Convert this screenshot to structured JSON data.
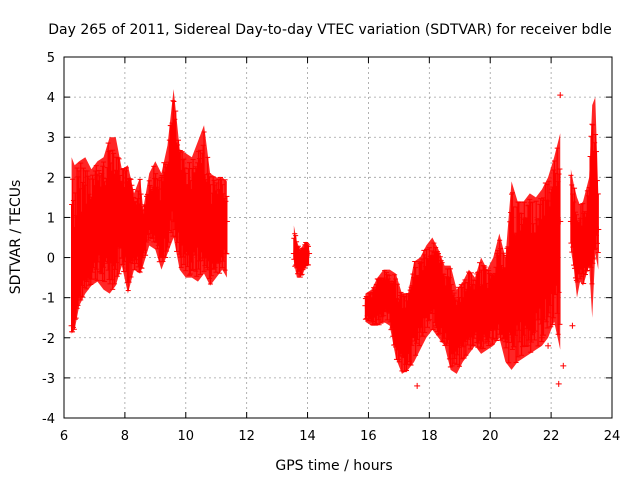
{
  "chart_data": {
    "type": "scatter",
    "title": "Day 265 of 2011, Sidereal Day-to-day VTEC variation (SDTVAR) for receiver bdle",
    "xlabel": "GPS time / hours",
    "ylabel": "SDTVAR / TECUs",
    "xlim": [
      6,
      24
    ],
    "ylim": [
      -4,
      5
    ],
    "xticks": [
      6,
      8,
      10,
      12,
      14,
      16,
      18,
      20,
      22,
      24
    ],
    "yticks": [
      -4,
      -3,
      -2,
      -1,
      0,
      1,
      2,
      3,
      4,
      5
    ],
    "grid": true,
    "series_color": "#ff0000",
    "series": [
      {
        "name": "SDTVAR",
        "marker": "plus",
        "segments": [
          {
            "x": [
              6.25,
              6.35,
              6.5,
              6.7,
              6.9,
              7.1,
              7.3,
              7.5,
              7.7,
              7.9,
              8.1,
              8.3,
              8.5,
              8.6,
              8.8,
              9.0,
              9.2,
              9.4,
              9.6,
              9.8,
              10.0,
              10.2,
              10.4,
              10.6,
              10.8,
              11.0,
              11.2,
              11.35
            ],
            "y": [
              -1.7,
              -1.2,
              -0.5,
              0.1,
              0.6,
              0.9,
              0.7,
              1.3,
              1.1,
              1.4,
              0.6,
              1.0,
              0.5,
              0.8,
              1.2,
              0.9,
              0.6,
              1.5,
              2.3,
              1.4,
              1.0,
              0.8,
              1.2,
              0.9,
              0.5,
              0.7,
              0.8,
              0.9
            ],
            "lo": [
              -1.9,
              -1.8,
              -1.2,
              -0.9,
              -0.7,
              -0.6,
              -0.8,
              -0.9,
              -0.7,
              -0.2,
              -0.9,
              -0.3,
              -0.4,
              -0.2,
              0.3,
              0.2,
              -0.3,
              0.1,
              0.5,
              -0.3,
              -0.5,
              -0.5,
              -0.6,
              -0.4,
              -0.7,
              -0.5,
              -0.3,
              -0.5
            ],
            "hi": [
              2.5,
              2.3,
              2.4,
              2.5,
              2.2,
              2.4,
              2.5,
              3.0,
              3.0,
              2.2,
              2.3,
              1.6,
              2.0,
              1.2,
              2.1,
              2.4,
              2.1,
              2.8,
              4.2,
              2.7,
              2.6,
              2.5,
              2.9,
              3.3,
              2.1,
              2.0,
              2.0,
              1.9
            ]
          },
          {
            "x": [
              13.55,
              13.65,
              13.75,
              13.85,
              13.95,
              14.05
            ],
            "y": [
              0.1,
              0.2,
              -0.1,
              0.0,
              0.2,
              0.1
            ],
            "lo": [
              -0.1,
              -0.5,
              -0.5,
              -0.4,
              -0.2,
              -0.2
            ],
            "hi": [
              0.8,
              0.4,
              0.2,
              0.3,
              0.4,
              0.3
            ]
          },
          {
            "x": [
              15.9,
              16.1,
              16.3,
              16.5,
              16.7,
              16.9,
              17.1,
              17.3,
              17.5,
              17.7,
              17.9,
              18.1,
              18.3,
              18.5,
              18.7,
              18.9,
              19.1,
              19.3,
              19.5,
              19.7,
              19.9,
              20.1,
              20.3,
              20.5,
              20.7,
              20.9,
              21.1,
              21.3,
              21.5,
              21.7,
              21.9,
              22.1,
              22.3
            ],
            "y": [
              -1.2,
              -1.3,
              -1.0,
              -0.9,
              -1.0,
              -1.6,
              -1.8,
              -1.5,
              -1.2,
              -1.0,
              -0.7,
              -0.6,
              -1.0,
              -1.2,
              -1.5,
              -1.7,
              -1.5,
              -1.3,
              -1.2,
              -1.5,
              -1.4,
              -1.0,
              -1.2,
              -1.4,
              -0.6,
              -0.7,
              -0.4,
              -0.5,
              -0.3,
              0.0,
              0.2,
              0.4,
              0.9
            ],
            "lo": [
              -1.6,
              -1.7,
              -1.7,
              -1.6,
              -1.7,
              -2.5,
              -2.9,
              -2.8,
              -2.6,
              -2.3,
              -2.0,
              -1.8,
              -2.0,
              -2.2,
              -2.8,
              -2.9,
              -2.6,
              -2.4,
              -2.2,
              -2.4,
              -2.3,
              -2.2,
              -2.0,
              -2.6,
              -2.8,
              -2.6,
              -2.5,
              -2.4,
              -2.3,
              -2.2,
              -2.0,
              -1.6,
              -2.3
            ],
            "hi": [
              -0.9,
              -0.8,
              -0.5,
              -0.3,
              -0.3,
              -0.4,
              -0.9,
              -0.9,
              -0.1,
              0.0,
              0.3,
              0.5,
              0.2,
              -0.2,
              -0.2,
              -0.8,
              -0.6,
              -0.3,
              -0.5,
              0.0,
              -0.3,
              0.0,
              0.6,
              0.0,
              1.9,
              1.4,
              1.4,
              1.6,
              1.5,
              1.7,
              2.0,
              2.5,
              3.1
            ]
          },
          {
            "x": [
              22.65,
              22.75,
              22.85,
              22.95,
              23.05,
              23.25,
              23.35,
              23.45,
              23.55
            ],
            "y": [
              0.9,
              0.6,
              0.3,
              0.0,
              0.2,
              0.5,
              0.8,
              1.5,
              0.7
            ],
            "lo": [
              0.2,
              -0.3,
              -1.0,
              -0.6,
              -0.7,
              -0.2,
              -1.5,
              0.1,
              -0.3
            ],
            "hi": [
              2.2,
              1.8,
              1.5,
              1.3,
              1.4,
              2.0,
              3.8,
              4.0,
              1.6
            ]
          }
        ],
        "outliers": {
          "x": [
            22.3,
            22.25,
            22.4,
            17.6,
            21.7,
            21.9,
            22.7
          ],
          "y": [
            4.05,
            -3.15,
            -2.7,
            -3.2,
            -2.0,
            -2.2,
            -1.7
          ]
        }
      }
    ]
  }
}
